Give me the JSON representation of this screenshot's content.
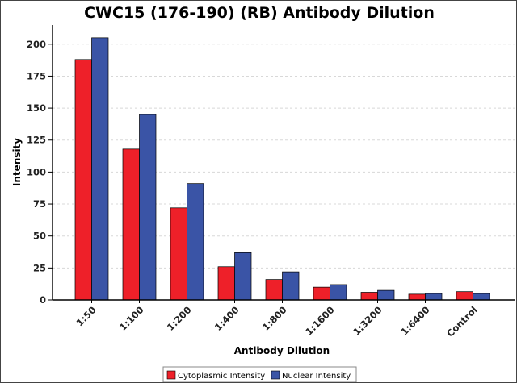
{
  "chart_data": {
    "type": "bar",
    "title": "CWC15 (176-190) (RB) Antibody Dilution",
    "xlabel": "Antibody Dilution",
    "ylabel": "Intensity",
    "categories": [
      "1:50",
      "1:100",
      "1:200",
      "1:400",
      "1:800",
      "1:1600",
      "1:3200",
      "1:6400",
      "Control"
    ],
    "series": [
      {
        "name": "Cytoplasmic Intensity",
        "color": "#ee2029",
        "values": [
          188,
          118,
          72,
          26,
          16,
          10,
          6,
          4.5,
          6.5
        ]
      },
      {
        "name": "Nuclear Intensity",
        "color": "#3a54a6",
        "values": [
          205,
          145,
          91,
          37,
          22,
          12,
          7.5,
          5,
          5
        ]
      }
    ],
    "ylim": [
      0,
      215
    ],
    "yticks": [
      0,
      25,
      50,
      75,
      100,
      125,
      150,
      175,
      200
    ],
    "grid": true,
    "legend_position": "bottom-center"
  }
}
